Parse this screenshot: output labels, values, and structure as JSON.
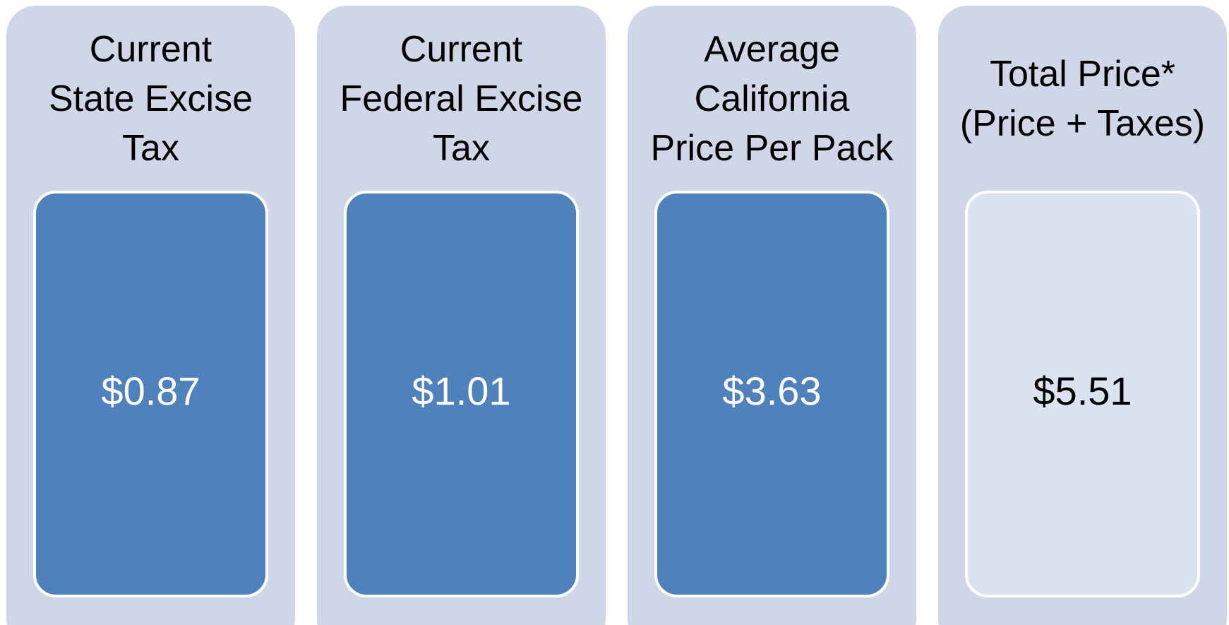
{
  "panels": [
    {
      "title_lines": [
        "Current",
        "State Excise",
        "Tax"
      ],
      "value": "$0.87"
    },
    {
      "title_lines": [
        "Current",
        "Federal Excise",
        "Tax"
      ],
      "value": "$1.01"
    },
    {
      "title_lines": [
        "Average",
        "California",
        "Price Per Pack"
      ],
      "value": "$3.63"
    },
    {
      "title_lines": [
        "Total Price*",
        "(Price + Taxes)"
      ],
      "value": "$5.51"
    }
  ]
}
